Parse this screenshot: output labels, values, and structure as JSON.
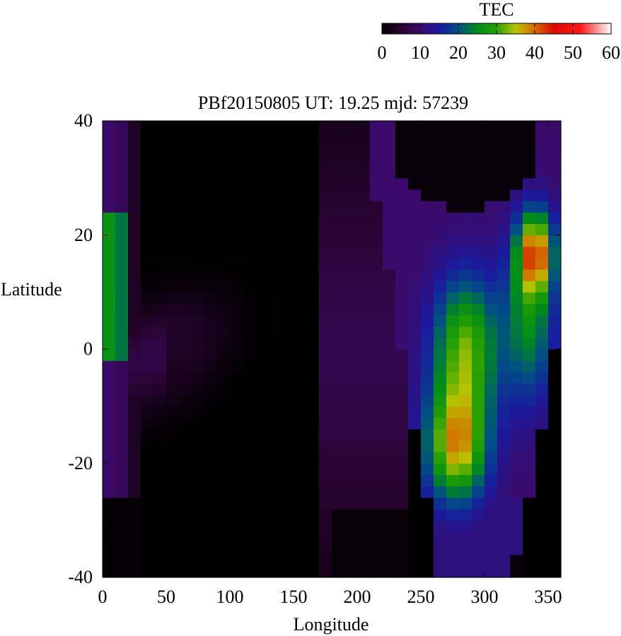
{
  "chart_data": {
    "type": "heatmap",
    "title": "PBf20150805  UT: 19.25  mjd: 57239",
    "xlabel": "Longitude",
    "ylabel": "Latitude",
    "xlim": [
      0,
      360
    ],
    "ylim": [
      -40,
      40
    ],
    "xticks": [
      0,
      50,
      100,
      150,
      200,
      250,
      300,
      350
    ],
    "yticks": [
      -40,
      -20,
      0,
      20,
      40
    ],
    "grid": false,
    "cell_size": {
      "longitude_deg": 10,
      "latitude_deg": 2
    },
    "colorbar": {
      "label": "TEC",
      "range": [
        0,
        60
      ],
      "ticks": [
        0,
        10,
        20,
        30,
        40,
        50,
        60
      ],
      "placement": "top-right",
      "stops": [
        {
          "value": 0,
          "color": "#000000"
        },
        {
          "value": 5,
          "color": "#2a0433"
        },
        {
          "value": 10,
          "color": "#3c0a6a"
        },
        {
          "value": 15,
          "color": "#1a1a9e"
        },
        {
          "value": 20,
          "color": "#004f85"
        },
        {
          "value": 25,
          "color": "#008c1a"
        },
        {
          "value": 30,
          "color": "#28a000"
        },
        {
          "value": 35,
          "color": "#b9c400"
        },
        {
          "value": 40,
          "color": "#d46a00"
        },
        {
          "value": 45,
          "color": "#d80a00"
        },
        {
          "value": 52,
          "color": "#ff1a1a"
        },
        {
          "value": 60,
          "color": "#ffffff"
        }
      ]
    },
    "description_of_field": {
      "equatorial_anomaly_crests": [
        {
          "lon": 280,
          "lat": -18,
          "tec": 36
        },
        {
          "lon": 340,
          "lat": 17,
          "tec": 40
        }
      ],
      "night_region_lon": [
        50,
        175
      ],
      "western_edge_band": {
        "lon": [
          0,
          15
        ],
        "lat": [
          -2,
          23
        ],
        "tec": 25
      }
    }
  }
}
